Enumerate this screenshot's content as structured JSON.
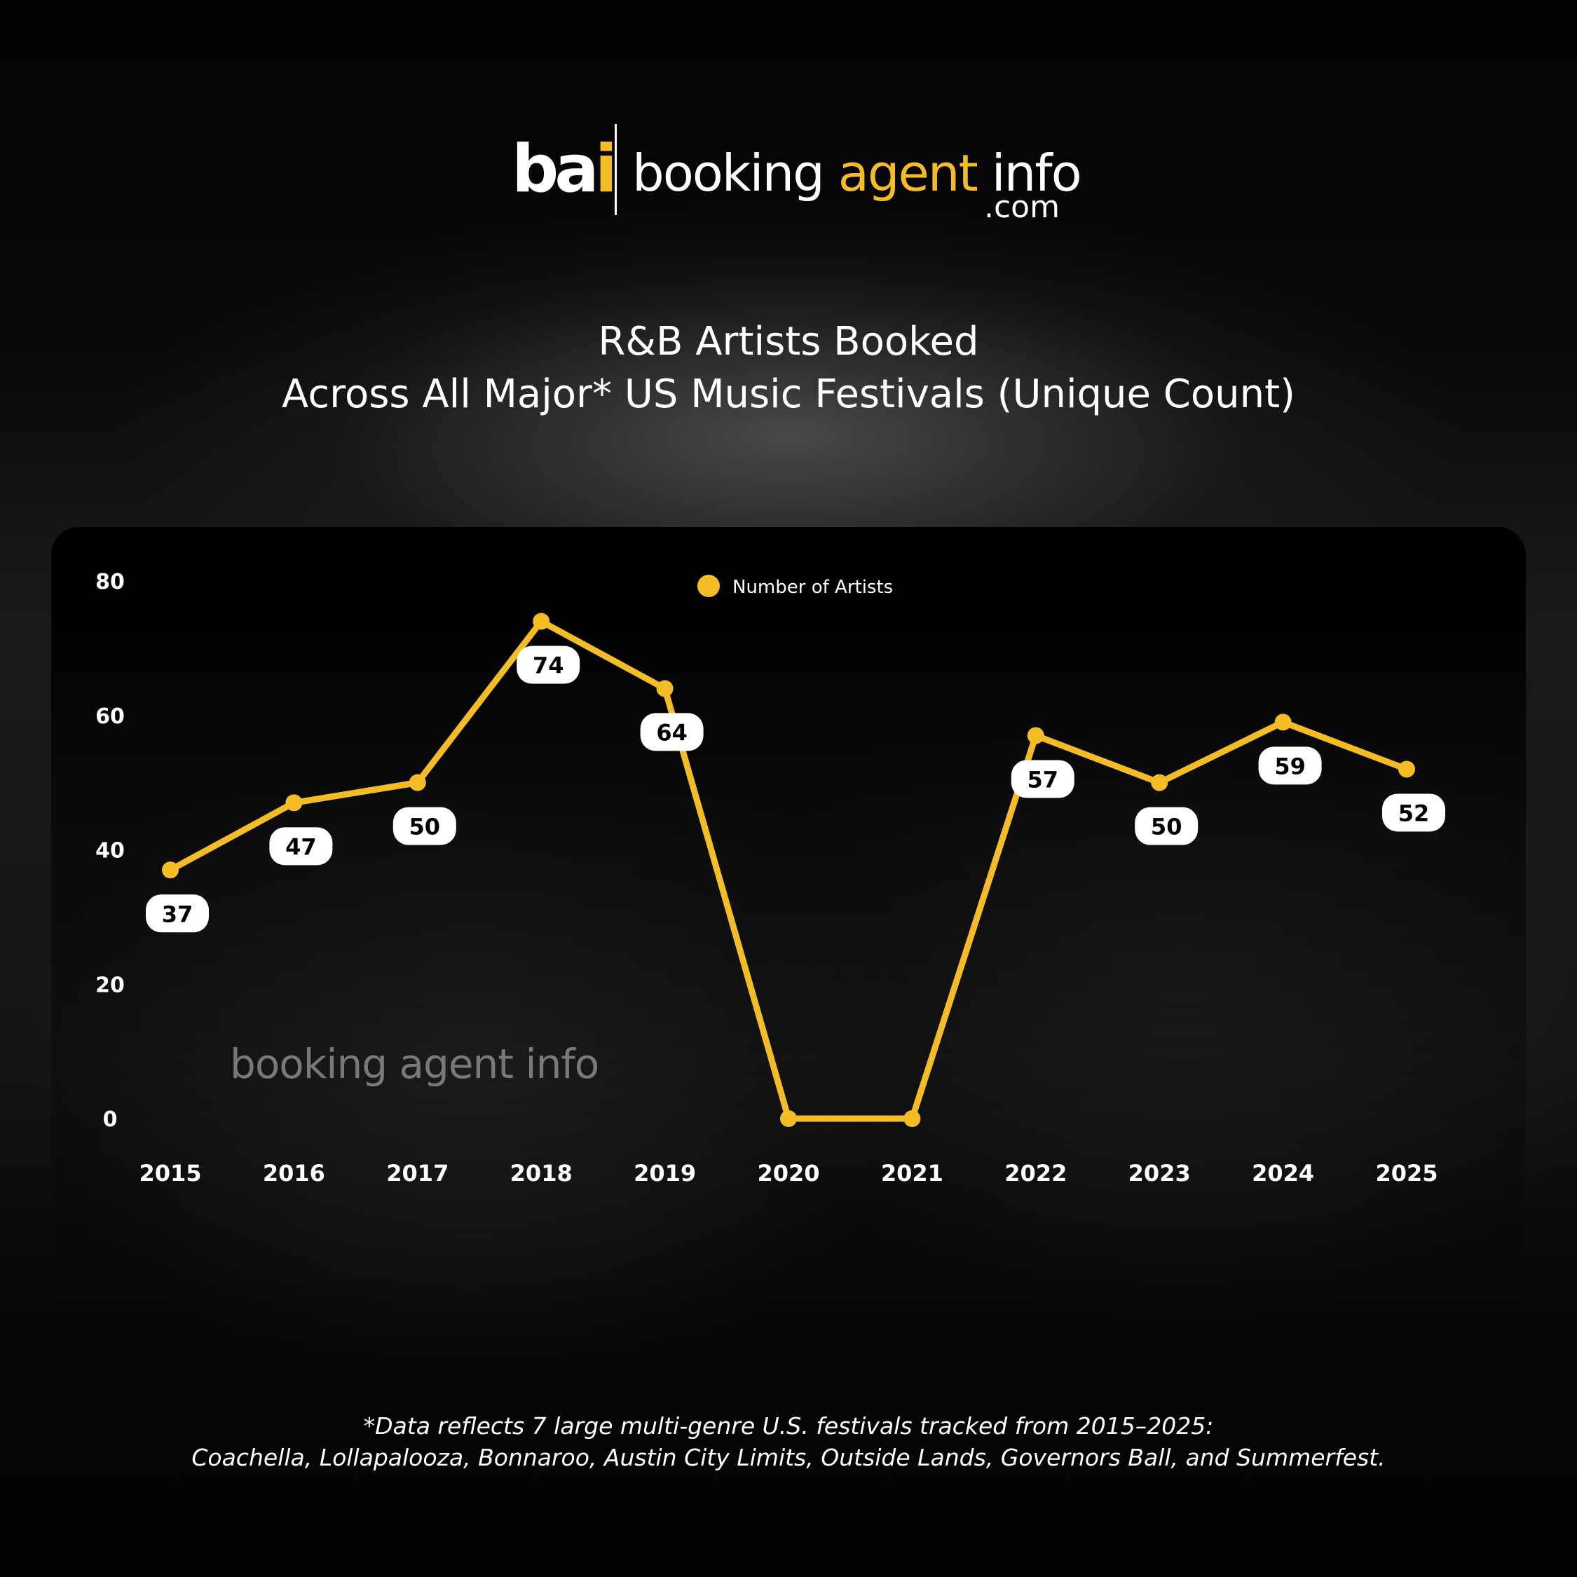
{
  "brand": {
    "mark_left": "ba",
    "mark_right": "i",
    "name_part1": "booking ",
    "name_part2": "agent",
    "name_part3": " info",
    "domain": ".com",
    "watermark": "booking agent info"
  },
  "header": {
    "title_line1": "R&B Artists Booked",
    "title_line2": "Across All Major* US Music Festivals (Unique Count)"
  },
  "colors": {
    "accent": "#f5bd25",
    "background": "#050505",
    "label_box": "#ffffff",
    "label_text": "#000000"
  },
  "chart_data": {
    "type": "line",
    "title": "R&B Artists Booked Across All Major* US Music Festivals (Unique Count)",
    "categories": [
      "2015",
      "2016",
      "2017",
      "2018",
      "2019",
      "2020",
      "2021",
      "2022",
      "2023",
      "2024",
      "2025"
    ],
    "series": [
      {
        "name": "Number of Artists",
        "values": [
          37,
          47,
          50,
          74,
          64,
          0,
          0,
          57,
          50,
          59,
          52
        ],
        "labels": [
          "37",
          "47",
          "50",
          "74",
          "64",
          "",
          "",
          "57",
          "50",
          "59",
          "52"
        ]
      }
    ],
    "yticks": [
      "0",
      "20",
      "40",
      "60",
      "80"
    ],
    "ylim": [
      0,
      80
    ],
    "xlabel": "",
    "ylabel": "",
    "grid": false,
    "legend": "top-center"
  },
  "footnote": {
    "line1": "*Data reflects 7 large multi-genre U.S. festivals tracked from 2015–2025:",
    "line2": "Coachella, Lollapalooza, Bonnaroo, Austin City Limits, Outside Lands, Governors Ball, and Summerfest."
  }
}
